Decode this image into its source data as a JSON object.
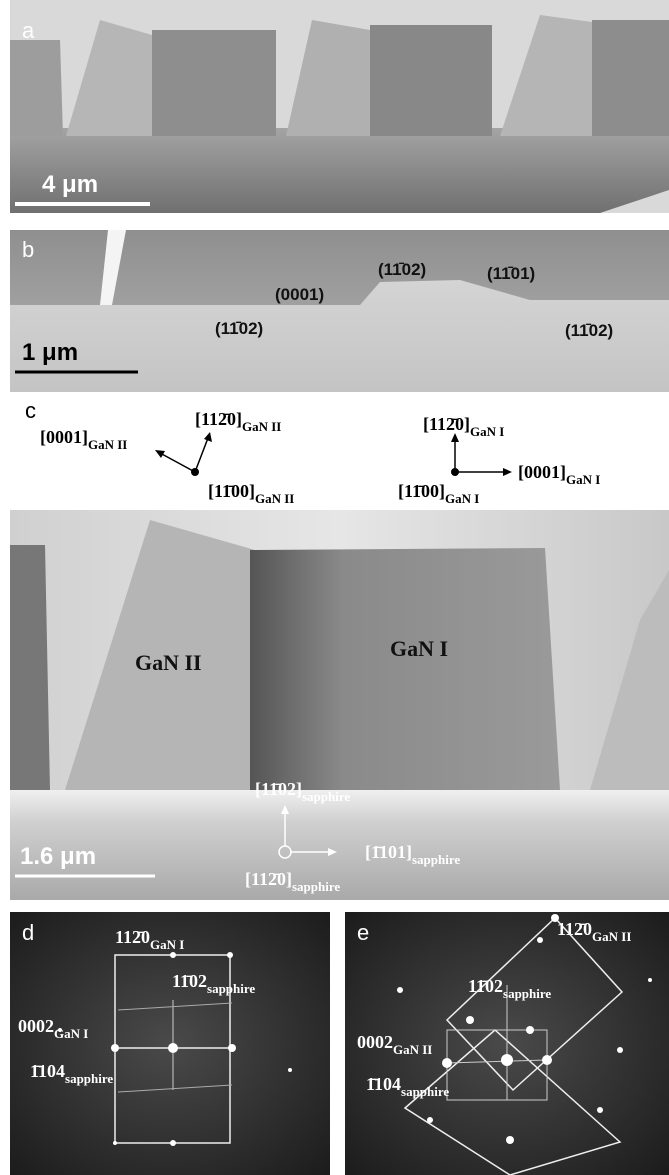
{
  "panels": [
    {
      "label": "a",
      "scale_bar": "4 μm"
    },
    {
      "label": "b",
      "scale_bar": "1 μm",
      "annotations": [
        "(0001)",
        "(11̄02)",
        "(11̄01)",
        "(11̄02)",
        "(11̄02)"
      ]
    },
    {
      "label": "c",
      "scale_bar": "1.6 μm",
      "directions": [
        {
          "index": "[0001]",
          "sub": "GaN II"
        },
        {
          "index": "[112̄0]",
          "sub": "GaN II"
        },
        {
          "index": "[11̄00]",
          "sub": "GaN II"
        },
        {
          "index": "[112̄0]",
          "sub": "GaN I"
        },
        {
          "index": "[0001]",
          "sub": "GaN I"
        },
        {
          "index": "[11̄00]",
          "sub": "GaN I"
        }
      ],
      "grains": [
        "GaN II",
        "GaN I"
      ],
      "sapphire": [
        {
          "index": "[11̄02]",
          "sub": "sapphire"
        },
        {
          "index": "[1̄101]",
          "sub": "sapphire"
        },
        {
          "index": "[112̄0]",
          "sub": "sapphire"
        }
      ]
    },
    {
      "label": "d",
      "spots": [
        {
          "index": "112̄0",
          "sub": "GaN I"
        },
        {
          "index": "11̄02",
          "sub": "sapphire"
        },
        {
          "index": "0002",
          "sub": "GaN I"
        },
        {
          "index": "1̄104",
          "sub": "sapphire"
        }
      ]
    },
    {
      "label": "e",
      "spots": [
        {
          "index": "112̄0",
          "sub": "GaN II"
        },
        {
          "index": "11̄02",
          "sub": "sapphire"
        },
        {
          "index": "0002",
          "sub": "GaN II"
        },
        {
          "index": "1̄104",
          "sub": "sapphire"
        }
      ]
    }
  ]
}
